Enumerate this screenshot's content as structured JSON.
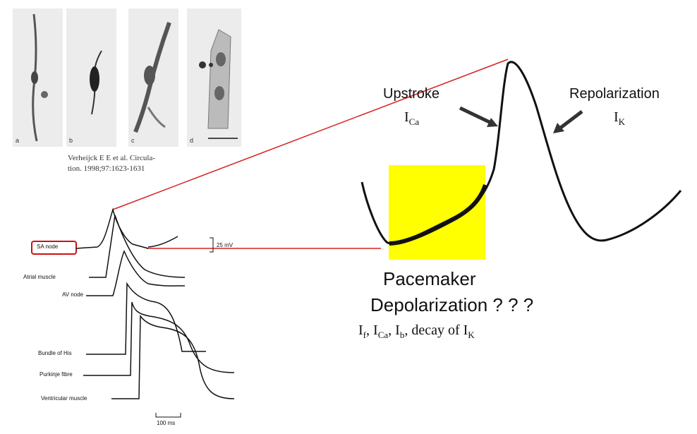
{
  "micrograph_panel": {
    "labels": [
      "a",
      "b",
      "c",
      "d"
    ]
  },
  "citation": {
    "line1": "Verheijck E E et al. Circula-",
    "line2": "tion. 1998;97:1623-1631"
  },
  "action_potentials": {
    "highlighted_label": "SA node",
    "scale_voltage": "25 mV",
    "scale_time": "100 ms",
    "traces": [
      "Atrial muscle",
      "AV node",
      "Bundle of His",
      "Purkinje fibre",
      "Ventricular muscle"
    ]
  },
  "zoomed_ap": {
    "upstroke_label": "Upstroke",
    "upstroke_current": {
      "base": "I",
      "sub": "Ca"
    },
    "repolarization_label": "Repolarization",
    "repolarization_current": {
      "base": "I",
      "sub": "K"
    },
    "pacemaker_line1": "Pacemaker",
    "pacemaker_line2": "Depolarization ? ? ?",
    "currents": [
      {
        "base": "I",
        "sub": "f",
        "sep": ", "
      },
      {
        "base": "I",
        "sub": "Ca",
        "sep": ", "
      },
      {
        "base": "I",
        "sub": "b",
        "sep": ", decay of "
      },
      {
        "base": "I",
        "sub": "K",
        "sep": ""
      }
    ]
  },
  "colors": {
    "highlight_box": "#ffff00",
    "connector_lines": "#d62020",
    "sa_node_box": "#cc1111",
    "trace": "#111111"
  }
}
